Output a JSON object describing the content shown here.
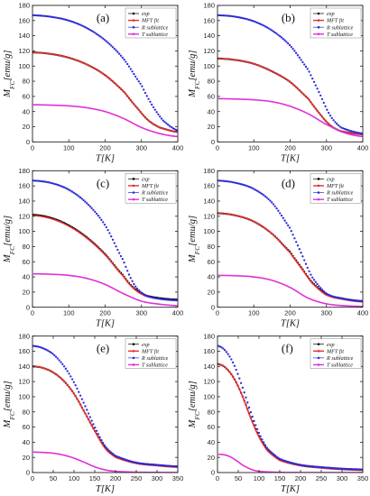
{
  "chart_data": [
    {
      "type": "line",
      "panel_label": "(a)",
      "xlabel": "T[K]",
      "ylabel": "M_FC[emu/g]",
      "xlim": [
        0,
        400
      ],
      "ylim": [
        0,
        180
      ],
      "xticks": [
        0,
        100,
        200,
        300,
        400
      ],
      "yticks": [
        0,
        20,
        40,
        60,
        80,
        100,
        120,
        140,
        160,
        180
      ],
      "legend_position": "top-right",
      "series": [
        {
          "name": "exp",
          "color": "#000000",
          "style": "dots",
          "x": [
            2,
            50,
            100,
            150,
            200,
            250,
            290,
            320,
            350,
            400
          ],
          "y": [
            118,
            116,
            111,
            102,
            88,
            67,
            44,
            28,
            19,
            13
          ]
        },
        {
          "name": "MFT fit",
          "color": "#e53030",
          "style": "line",
          "x": [
            2,
            50,
            100,
            150,
            200,
            250,
            290,
            320,
            350,
            400
          ],
          "y": [
            118,
            116,
            111,
            102,
            88,
            67,
            44,
            28,
            19,
            13
          ]
        },
        {
          "name": "R sublattice",
          "color": "#2a2ad8",
          "style": "dots",
          "x": [
            2,
            50,
            100,
            150,
            200,
            250,
            300,
            330,
            360,
            400
          ],
          "y": [
            167,
            165,
            160,
            150,
            134,
            110,
            75,
            48,
            28,
            15
          ]
        },
        {
          "name": "T sublattice",
          "color": "#e030d8",
          "style": "line",
          "x": [
            2,
            50,
            100,
            150,
            200,
            250,
            300,
            350,
            400
          ],
          "y": [
            49,
            48.5,
            47.5,
            45,
            40,
            31,
            19,
            11,
            7
          ]
        }
      ]
    },
    {
      "type": "line",
      "panel_label": "(b)",
      "xlabel": "T[K]",
      "ylabel": "M_FC[emu/g]",
      "xlim": [
        0,
        400
      ],
      "ylim": [
        0,
        180
      ],
      "xticks": [
        0,
        100,
        200,
        300,
        400
      ],
      "yticks": [
        0,
        20,
        40,
        60,
        80,
        100,
        120,
        140,
        160,
        180
      ],
      "legend_position": "top-right",
      "series": [
        {
          "name": "exp",
          "color": "#000000",
          "style": "dots",
          "x": [
            2,
            50,
            100,
            150,
            200,
            250,
            280,
            310,
            340,
            400
          ],
          "y": [
            110,
            108,
            103,
            93,
            79,
            57,
            38,
            22,
            14,
            10
          ]
        },
        {
          "name": "MFT fit",
          "color": "#e53030",
          "style": "line",
          "x": [
            2,
            50,
            100,
            150,
            200,
            250,
            280,
            310,
            340,
            400
          ],
          "y": [
            110,
            108,
            103,
            93,
            79,
            57,
            38,
            22,
            14,
            10
          ]
        },
        {
          "name": "R sublattice",
          "color": "#2a2ad8",
          "style": "dots",
          "x": [
            2,
            50,
            100,
            150,
            200,
            250,
            280,
            310,
            340,
            400
          ],
          "y": [
            167,
            165,
            159,
            147,
            127,
            95,
            65,
            35,
            19,
            11
          ]
        },
        {
          "name": "T sublattice",
          "color": "#e030d8",
          "style": "line",
          "x": [
            2,
            50,
            100,
            150,
            200,
            250,
            300,
            350,
            400
          ],
          "y": [
            57,
            56.5,
            55.5,
            53,
            47,
            37,
            23,
            12,
            7
          ]
        }
      ]
    },
    {
      "type": "line",
      "panel_label": "(c)",
      "xlabel": "T[K]",
      "ylabel": "M_FC[emu/g]",
      "xlim": [
        0,
        400
      ],
      "ylim": [
        0,
        180
      ],
      "xticks": [
        0,
        100,
        200,
        300,
        400
      ],
      "yticks": [
        0,
        20,
        40,
        60,
        80,
        100,
        120,
        140,
        160,
        180
      ],
      "legend_position": "top-right",
      "series": [
        {
          "name": "exp",
          "color": "#000000",
          "style": "dots",
          "x": [
            2,
            50,
            100,
            150,
            200,
            250,
            280,
            310,
            350,
            400
          ],
          "y": [
            122,
            118,
            108,
            92,
            70,
            42,
            25,
            16,
            12,
            10
          ]
        },
        {
          "name": "MFT fit",
          "color": "#e53030",
          "style": "line",
          "x": [
            2,
            50,
            100,
            150,
            200,
            250,
            280,
            310,
            350,
            400
          ],
          "y": [
            121,
            117,
            107,
            91,
            69,
            41,
            24,
            15,
            11,
            9
          ]
        },
        {
          "name": "R sublattice",
          "color": "#2a2ad8",
          "style": "dots",
          "x": [
            2,
            50,
            100,
            150,
            200,
            250,
            280,
            310,
            350,
            400
          ],
          "y": [
            167,
            164,
            155,
            137,
            108,
            62,
            30,
            16,
            11,
            9
          ]
        },
        {
          "name": "T sublattice",
          "color": "#e030d8",
          "style": "line",
          "x": [
            2,
            50,
            100,
            150,
            200,
            250,
            300,
            350,
            400
          ],
          "y": [
            44,
            43.5,
            42,
            38,
            30,
            18,
            8,
            4,
            2
          ]
        }
      ]
    },
    {
      "type": "line",
      "panel_label": "(d)",
      "xlabel": "T[K]",
      "ylabel": "M_FC[emu/g]",
      "xlim": [
        0,
        400
      ],
      "ylim": [
        0,
        180
      ],
      "xticks": [
        0,
        100,
        200,
        300,
        400
      ],
      "yticks": [
        0,
        20,
        40,
        60,
        80,
        100,
        120,
        140,
        160,
        180
      ],
      "legend_position": "top-right",
      "series": [
        {
          "name": "exp",
          "color": "#000000",
          "style": "dots",
          "x": [
            2,
            50,
            100,
            150,
            200,
            230,
            260,
            300,
            350,
            400
          ],
          "y": [
            124,
            121,
            113,
            97,
            73,
            53,
            33,
            17,
            11,
            8
          ]
        },
        {
          "name": "MFT fit",
          "color": "#e53030",
          "style": "line",
          "x": [
            2,
            50,
            100,
            150,
            200,
            230,
            260,
            300,
            350,
            400
          ],
          "y": [
            124,
            121,
            113,
            97,
            72,
            52,
            32,
            16,
            10,
            7
          ]
        },
        {
          "name": "R sublattice",
          "color": "#2a2ad8",
          "style": "dots",
          "x": [
            2,
            50,
            100,
            150,
            200,
            230,
            260,
            300,
            350,
            400
          ],
          "y": [
            167,
            164,
            156,
            138,
            104,
            72,
            40,
            18,
            11,
            8
          ]
        },
        {
          "name": "T sublattice",
          "color": "#e030d8",
          "style": "line",
          "x": [
            2,
            50,
            100,
            150,
            200,
            250,
            300,
            350,
            400
          ],
          "y": [
            42,
            41.5,
            40,
            35.5,
            26,
            12,
            4.5,
            2,
            1
          ]
        }
      ]
    },
    {
      "type": "line",
      "panel_label": "(e)",
      "xlabel": "T[K]",
      "ylabel": "M_FC[emu/g]",
      "xlim": [
        0,
        350
      ],
      "ylim": [
        0,
        180
      ],
      "xticks": [
        0,
        50,
        100,
        150,
        200,
        250,
        300,
        350
      ],
      "yticks": [
        0,
        20,
        40,
        60,
        80,
        100,
        120,
        140,
        160,
        180
      ],
      "legend_position": "top-right",
      "series": [
        {
          "name": "exp",
          "color": "#000000",
          "style": "dots",
          "x": [
            2,
            25,
            50,
            75,
            100,
            125,
            150,
            175,
            200,
            250,
            300,
            350
          ],
          "y": [
            140,
            138,
            132,
            121,
            104,
            80,
            55,
            33,
            21,
            13,
            10,
            8
          ]
        },
        {
          "name": "MFT fit",
          "color": "#e53030",
          "style": "line",
          "x": [
            2,
            25,
            50,
            75,
            100,
            125,
            150,
            175,
            200,
            250,
            300,
            350
          ],
          "y": [
            140,
            138,
            132,
            121,
            104,
            80,
            55,
            32,
            20,
            12,
            9,
            7
          ]
        },
        {
          "name": "R sublattice",
          "color": "#2a2ad8",
          "style": "dots",
          "x": [
            2,
            25,
            50,
            75,
            100,
            125,
            150,
            175,
            200,
            250,
            300,
            350
          ],
          "y": [
            167,
            164,
            156,
            141,
            119,
            90,
            60,
            35,
            22,
            13,
            10,
            8
          ]
        },
        {
          "name": "T sublattice",
          "color": "#e030d8",
          "style": "line",
          "x": [
            2,
            25,
            50,
            75,
            100,
            125,
            150,
            175,
            200,
            250,
            300,
            350
          ],
          "y": [
            27,
            26.5,
            25.5,
            23,
            19,
            13.5,
            7.5,
            3.5,
            1.5,
            0.5,
            0.2,
            0
          ]
        }
      ]
    },
    {
      "type": "line",
      "panel_label": "(f)",
      "xlabel": "T[K]",
      "ylabel": "M_FC[emu/g]",
      "xlim": [
        0,
        350
      ],
      "ylim": [
        0,
        180
      ],
      "xticks": [
        0,
        50,
        100,
        150,
        200,
        250,
        300,
        350
      ],
      "yticks": [
        0,
        20,
        40,
        60,
        80,
        100,
        120,
        140,
        160,
        180
      ],
      "legend_position": "top-right",
      "series": [
        {
          "name": "exp",
          "color": "#000000",
          "style": "dots",
          "x": [
            2,
            20,
            40,
            60,
            80,
            100,
            120,
            150,
            200,
            250,
            300,
            350
          ],
          "y": [
            143,
            138,
            124,
            101,
            73,
            48,
            30,
            17,
            10,
            7,
            5,
            4
          ]
        },
        {
          "name": "MFT fit",
          "color": "#e53030",
          "style": "line",
          "x": [
            2,
            20,
            40,
            60,
            80,
            100,
            120,
            150,
            200,
            250,
            300,
            350
          ],
          "y": [
            143,
            138,
            124,
            101,
            72,
            47,
            29,
            16,
            9,
            6,
            4,
            3
          ]
        },
        {
          "name": "R sublattice",
          "color": "#2a2ad8",
          "style": "dots",
          "x": [
            2,
            20,
            40,
            60,
            80,
            100,
            120,
            150,
            200,
            250,
            300,
            350
          ],
          "y": [
            167,
            160,
            142,
            113,
            80,
            52,
            32,
            18,
            10,
            7,
            5,
            4
          ]
        },
        {
          "name": "T sublattice",
          "color": "#e030d8",
          "style": "line",
          "x": [
            2,
            15,
            30,
            45,
            60,
            80,
            100,
            150,
            200,
            350
          ],
          "y": [
            24,
            23.5,
            21,
            16,
            10,
            4.5,
            1.5,
            0.3,
            0,
            0
          ]
        }
      ]
    }
  ]
}
